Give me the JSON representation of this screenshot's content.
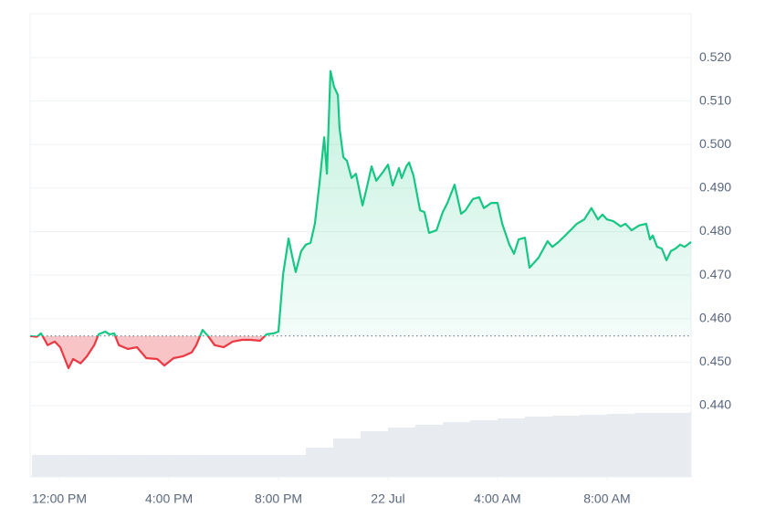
{
  "chart_data": {
    "type": "line",
    "x": [
      -1.07,
      -0.83,
      -0.67,
      -0.43,
      -0.17,
      0.03,
      0.33,
      0.5,
      0.77,
      1,
      1.27,
      1.43,
      1.67,
      1.83,
      2,
      2.17,
      2.5,
      2.83,
      3.17,
      3.57,
      3.83,
      4.17,
      4.5,
      4.83,
      5,
      5.23,
      5.43,
      5.67,
      6,
      6.33,
      6.67,
      7,
      7.33,
      7.57,
      7.83,
      8,
      8.17,
      8.37,
      8.5,
      8.63,
      8.83,
      9,
      9.17,
      9.33,
      9.5,
      9.67,
      9.77,
      9.9,
      10.03,
      10.17,
      10.23,
      10.37,
      10.5,
      10.67,
      10.83,
      11.07,
      11.23,
      11.4,
      11.57,
      11.83,
      12,
      12.17,
      12.4,
      12.5,
      12.67,
      12.77,
      12.93,
      13.17,
      13.33,
      13.5,
      13.77,
      14,
      14.17,
      14.43,
      14.67,
      14.83,
      15.1,
      15.33,
      15.5,
      15.77,
      16,
      16.17,
      16.43,
      16.6,
      16.77,
      17,
      17.17,
      17.5,
      17.83,
      18,
      18.23,
      18.57,
      18.9,
      19.17,
      19.43,
      19.67,
      19.83,
      20,
      20.23,
      20.5,
      20.67,
      20.9,
      21.17,
      21.43,
      21.57,
      21.67,
      21.83,
      22,
      22.17,
      22.33,
      22.5,
      22.67,
      22.83,
      23.07
    ],
    "values": [
      0.456,
      0.4558,
      0.4566,
      0.4539,
      0.4547,
      0.4534,
      0.4486,
      0.4507,
      0.4497,
      0.4513,
      0.4539,
      0.4564,
      0.457,
      0.4564,
      0.4566,
      0.4539,
      0.453,
      0.4534,
      0.4509,
      0.4507,
      0.4492,
      0.4509,
      0.4513,
      0.4522,
      0.4539,
      0.4574,
      0.456,
      0.4539,
      0.4534,
      0.4547,
      0.4551,
      0.4551,
      0.4549,
      0.4564,
      0.4566,
      0.457,
      0.4702,
      0.4784,
      0.4744,
      0.4707,
      0.4755,
      0.477,
      0.4774,
      0.4818,
      0.4912,
      0.5017,
      0.4933,
      0.5169,
      0.5133,
      0.5114,
      0.5038,
      0.4971,
      0.4963,
      0.4923,
      0.4933,
      0.486,
      0.4902,
      0.495,
      0.4917,
      0.4938,
      0.4954,
      0.4906,
      0.4946,
      0.4923,
      0.495,
      0.4959,
      0.4929,
      0.4849,
      0.4845,
      0.4797,
      0.4803,
      0.4845,
      0.4866,
      0.4908,
      0.4841,
      0.4849,
      0.4875,
      0.4879,
      0.4854,
      0.4866,
      0.4866,
      0.4818,
      0.477,
      0.4749,
      0.4782,
      0.4786,
      0.4717,
      0.474,
      0.4778,
      0.4765,
      0.4776,
      0.4797,
      0.4818,
      0.4828,
      0.4854,
      0.4828,
      0.4839,
      0.4828,
      0.4824,
      0.4812,
      0.4818,
      0.4803,
      0.4814,
      0.4818,
      0.4782,
      0.4791,
      0.4765,
      0.4761,
      0.4734,
      0.4755,
      0.4761,
      0.477,
      0.4765,
      0.4776
    ],
    "baseline": 0.456,
    "up_color": "#16c784",
    "down_color": "#ea3943",
    "xlim": [
      -1.07,
      23.07
    ],
    "xticks": [
      {
        "value": 0,
        "label": "12:00 PM"
      },
      {
        "value": 4,
        "label": "4:00 PM"
      },
      {
        "value": 8,
        "label": "8:00 PM"
      },
      {
        "value": 12,
        "label": "22 Jul"
      },
      {
        "value": 16,
        "label": "4:00 AM"
      },
      {
        "value": 20,
        "label": "8:00 AM"
      }
    ],
    "ylim": [
      0.4236,
      0.5301
    ],
    "yticks": [
      {
        "value": 0.44,
        "label": "0.440"
      },
      {
        "value": 0.45,
        "label": "0.450"
      },
      {
        "value": 0.46,
        "label": "0.460"
      },
      {
        "value": 0.47,
        "label": "0.470"
      },
      {
        "value": 0.48,
        "label": "0.480"
      },
      {
        "value": 0.49,
        "label": "0.490"
      },
      {
        "value": 0.5,
        "label": "0.500"
      },
      {
        "value": 0.51,
        "label": "0.510"
      },
      {
        "value": 0.52,
        "label": "0.520"
      }
    ],
    "grid": true,
    "volume": {
      "x": [
        -1,
        0,
        1,
        2,
        3,
        4,
        5,
        6,
        7,
        8,
        9,
        10,
        11,
        12,
        13,
        14,
        15,
        16,
        17,
        18,
        19,
        20,
        21,
        22,
        23
      ],
      "values": [
        24,
        24,
        24,
        24,
        24,
        24,
        24,
        24,
        24,
        24,
        32,
        42,
        50,
        54,
        57,
        60,
        62,
        64,
        66,
        67,
        68,
        69,
        70,
        70,
        71
      ],
      "lim": [
        0,
        100
      ],
      "color": "#e8ebf0"
    }
  }
}
